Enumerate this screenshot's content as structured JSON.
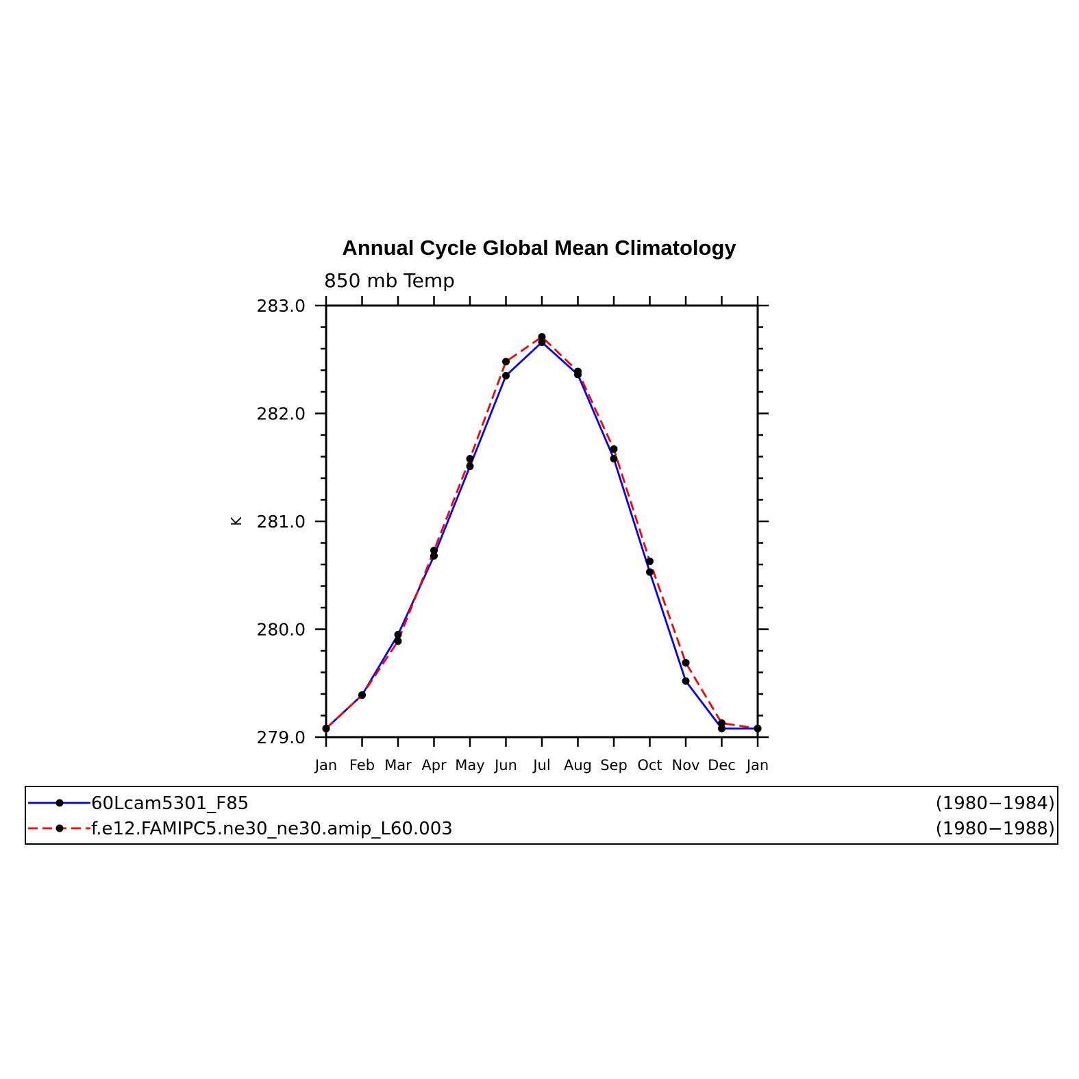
{
  "chart_data": {
    "type": "line",
    "title": "Annual Cycle Global Mean Climatology",
    "subtitle": "850 mb Temp",
    "xlabel": "",
    "ylabel": "K",
    "categories": [
      "Jan",
      "Feb",
      "Mar",
      "Apr",
      "May",
      "Jun",
      "Jul",
      "Aug",
      "Sep",
      "Oct",
      "Nov",
      "Dec",
      "Jan"
    ],
    "ylim": [
      279.0,
      283.0
    ],
    "yticks": [
      "279.0",
      "280.0",
      "281.0",
      "282.0",
      "283.0"
    ],
    "series": [
      {
        "name": "60Lcam5301_F85",
        "period": "(1980−1984)",
        "color": "#0000ff",
        "dash": "solid",
        "values": [
          279.08,
          279.39,
          279.95,
          280.68,
          281.51,
          282.35,
          282.66,
          282.36,
          281.58,
          280.53,
          279.52,
          279.08,
          279.08
        ]
      },
      {
        "name": "f.e12.FAMIPC5.ne30_ne30.amip_L60.003",
        "period": "(1980−1988)",
        "color": "#ff0000",
        "dash": "dashed",
        "values": [
          279.08,
          279.39,
          279.89,
          280.73,
          281.58,
          282.48,
          282.71,
          282.39,
          281.67,
          280.63,
          279.69,
          279.13,
          279.08
        ]
      }
    ],
    "marker_color": "#000000",
    "grid": false,
    "legend_position": "bottom"
  }
}
